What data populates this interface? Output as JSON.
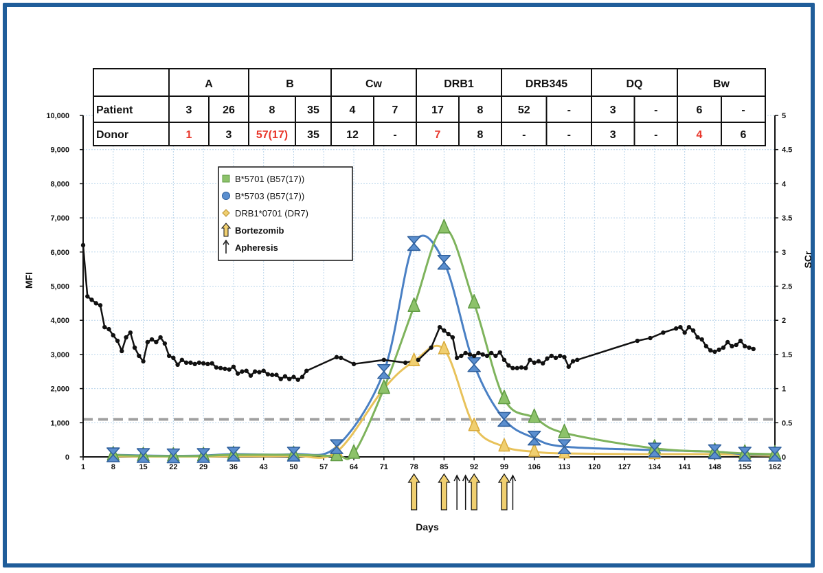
{
  "colors": {
    "frame": "#1f5d9a",
    "grid": "#b8d4ea",
    "green": "#7eb35c",
    "green_marker": "#8dc26a",
    "blue": "#4a80c4",
    "blue_marker": "#5b8fcf",
    "yellow": "#e8c25a",
    "yellow_marker": "#f0cf70",
    "scr_line": "#111111",
    "threshold": "#a0a0a0",
    "mismatch_text": "#e8362a"
  },
  "hla_table": {
    "headers": [
      "",
      "A",
      "B",
      "Cw",
      "DRB1",
      "DRB345",
      "DQ",
      "Bw"
    ],
    "rows": [
      {
        "label": "Patient",
        "cells": [
          {
            "text": "3",
            "mismatch": false
          },
          {
            "text": "26",
            "mismatch": false
          },
          {
            "text": "8",
            "mismatch": false
          },
          {
            "text": "35",
            "mismatch": false
          },
          {
            "text": "4",
            "mismatch": false
          },
          {
            "text": "7",
            "mismatch": false
          },
          {
            "text": "17",
            "mismatch": false
          },
          {
            "text": "8",
            "mismatch": false
          },
          {
            "text": "52",
            "mismatch": false
          },
          {
            "text": "-",
            "mismatch": false
          },
          {
            "text": "3",
            "mismatch": false
          },
          {
            "text": "-",
            "mismatch": false
          },
          {
            "text": "6",
            "mismatch": false
          },
          {
            "text": "-",
            "mismatch": false
          }
        ]
      },
      {
        "label": "Donor",
        "cells": [
          {
            "text": "1",
            "mismatch": true
          },
          {
            "text": "3",
            "mismatch": false
          },
          {
            "text": "57(17)",
            "mismatch": true
          },
          {
            "text": "35",
            "mismatch": false
          },
          {
            "text": "12",
            "mismatch": false
          },
          {
            "text": "-",
            "mismatch": false
          },
          {
            "text": "7",
            "mismatch": true
          },
          {
            "text": "8",
            "mismatch": false
          },
          {
            "text": "-",
            "mismatch": false
          },
          {
            "text": "-",
            "mismatch": false
          },
          {
            "text": "3",
            "mismatch": false
          },
          {
            "text": "-",
            "mismatch": false
          },
          {
            "text": "4",
            "mismatch": true
          },
          {
            "text": "6",
            "mismatch": false
          }
        ]
      }
    ]
  },
  "legend": {
    "items": [
      {
        "label": "B*5701 (B57(17))",
        "marker": "square",
        "color_key": "green_marker"
      },
      {
        "label": "B*5703 (B57(17))",
        "marker": "circle",
        "color_key": "blue_marker"
      },
      {
        "label": "DRB1*0701 (DR7)",
        "marker": "diamond",
        "color_key": "yellow_marker"
      },
      {
        "label": "Bortezomib",
        "marker": "thick-arrow",
        "color_key": "yellow_marker"
      },
      {
        "label": "Apheresis",
        "marker": "thin-arrow",
        "color_key": "scr_line"
      }
    ]
  },
  "chart_data": {
    "type": "line",
    "xlabel": "Days",
    "ylabel": "MFI",
    "y2label": "SCr",
    "xlim": [
      1,
      162
    ],
    "ylim": [
      0,
      10000
    ],
    "y2lim": [
      0,
      5
    ],
    "x_ticks": [
      1,
      8,
      15,
      22,
      29,
      36,
      43,
      50,
      57,
      64,
      71,
      78,
      85,
      92,
      99,
      106,
      113,
      120,
      127,
      134,
      141,
      148,
      155,
      162
    ],
    "y_ticks": [
      {
        "value": 0,
        "label": "0"
      },
      {
        "value": 1000,
        "label": "1,000"
      },
      {
        "value": 2000,
        "label": "2,000"
      },
      {
        "value": 3000,
        "label": "3,000"
      },
      {
        "value": 4000,
        "label": "4,000"
      },
      {
        "value": 5000,
        "label": "5,000"
      },
      {
        "value": 6000,
        "label": "6,000"
      },
      {
        "value": 7000,
        "label": "7,000"
      },
      {
        "value": 8000,
        "label": "8,000"
      },
      {
        "value": 9000,
        "label": "9,000"
      },
      {
        "value": 10000,
        "label": "10,000"
      }
    ],
    "y2_ticks": [
      {
        "value": 0,
        "label": "0"
      },
      {
        "value": 0.5,
        "label": "0.5"
      },
      {
        "value": 1,
        "label": "1"
      },
      {
        "value": 1.5,
        "label": "1.5"
      },
      {
        "value": 2,
        "label": "2"
      },
      {
        "value": 2.5,
        "label": "2.5"
      },
      {
        "value": 3,
        "label": "3"
      },
      {
        "value": 3.5,
        "label": "3.5"
      },
      {
        "value": 4,
        "label": "4"
      },
      {
        "value": 4.5,
        "label": "4.5"
      },
      {
        "value": 5,
        "label": "5"
      }
    ],
    "threshold_mfi": 1100,
    "series": [
      {
        "name": "B*5701 (B57(17))",
        "color_key": "green",
        "marker_color_key": "green_marker",
        "points": [
          [
            8,
            50
          ],
          [
            15,
            30
          ],
          [
            22,
            20
          ],
          [
            29,
            30
          ],
          [
            36,
            60
          ],
          [
            50,
            60
          ],
          [
            60,
            30
          ],
          [
            64,
            100
          ],
          [
            71,
            2000
          ],
          [
            78,
            4400
          ],
          [
            85,
            6700
          ],
          [
            92,
            4500
          ],
          [
            99,
            1700
          ],
          [
            106,
            1150
          ],
          [
            113,
            700
          ],
          [
            134,
            250
          ],
          [
            148,
            150
          ],
          [
            155,
            100
          ],
          [
            162,
            80
          ]
        ]
      },
      {
        "name": "B*5703 (B57(17))",
        "color_key": "blue",
        "marker_color_key": "blue_marker",
        "points": [
          [
            8,
            60
          ],
          [
            15,
            40
          ],
          [
            22,
            30
          ],
          [
            29,
            40
          ],
          [
            36,
            80
          ],
          [
            50,
            80
          ],
          [
            60,
            300
          ],
          [
            71,
            2500
          ],
          [
            78,
            6250
          ],
          [
            85,
            5700
          ],
          [
            92,
            2700
          ],
          [
            99,
            1100
          ],
          [
            106,
            550
          ],
          [
            113,
            300
          ],
          [
            134,
            200
          ],
          [
            148,
            150
          ],
          [
            155,
            80
          ],
          [
            162,
            80
          ]
        ]
      },
      {
        "name": "DRB1*0701 (DR7)",
        "color_key": "yellow",
        "marker_color_key": "yellow_marker",
        "points": [
          [
            8,
            20
          ],
          [
            15,
            10
          ],
          [
            22,
            10
          ],
          [
            29,
            10
          ],
          [
            36,
            20
          ],
          [
            50,
            30
          ],
          [
            60,
            150
          ],
          [
            71,
            2000
          ],
          [
            78,
            2800
          ],
          [
            85,
            3150
          ],
          [
            92,
            900
          ],
          [
            99,
            300
          ],
          [
            106,
            150
          ],
          [
            113,
            100
          ],
          [
            134,
            80
          ],
          [
            148,
            80
          ],
          [
            155,
            50
          ],
          [
            162,
            40
          ]
        ]
      },
      {
        "name": "SCr",
        "axis": "right",
        "color_key": "scr_line",
        "points": [
          [
            1,
            3.1
          ],
          [
            2,
            2.35
          ],
          [
            3,
            2.3
          ],
          [
            4,
            2.25
          ],
          [
            5,
            2.22
          ],
          [
            6,
            1.9
          ],
          [
            7,
            1.87
          ],
          [
            8,
            1.78
          ],
          [
            9,
            1.7
          ],
          [
            10,
            1.55
          ],
          [
            11,
            1.75
          ],
          [
            12,
            1.82
          ],
          [
            13,
            1.6
          ],
          [
            14,
            1.48
          ],
          [
            15,
            1.4
          ],
          [
            16,
            1.68
          ],
          [
            17,
            1.72
          ],
          [
            18,
            1.68
          ],
          [
            19,
            1.75
          ],
          [
            20,
            1.66
          ],
          [
            21,
            1.48
          ],
          [
            22,
            1.45
          ],
          [
            23,
            1.35
          ],
          [
            24,
            1.42
          ],
          [
            25,
            1.38
          ],
          [
            26,
            1.38
          ],
          [
            27,
            1.36
          ],
          [
            28,
            1.38
          ],
          [
            29,
            1.37
          ],
          [
            30,
            1.36
          ],
          [
            31,
            1.37
          ],
          [
            32,
            1.31
          ],
          [
            33,
            1.3
          ],
          [
            34,
            1.29
          ],
          [
            35,
            1.28
          ],
          [
            36,
            1.32
          ],
          [
            37,
            1.22
          ],
          [
            38,
            1.25
          ],
          [
            39,
            1.26
          ],
          [
            40,
            1.19
          ],
          [
            41,
            1.25
          ],
          [
            42,
            1.24
          ],
          [
            43,
            1.26
          ],
          [
            44,
            1.21
          ],
          [
            45,
            1.2
          ],
          [
            46,
            1.2
          ],
          [
            47,
            1.14
          ],
          [
            48,
            1.18
          ],
          [
            49,
            1.14
          ],
          [
            50,
            1.17
          ],
          [
            51,
            1.13
          ],
          [
            52,
            1.17
          ],
          [
            53,
            1.26
          ],
          [
            60,
            1.46
          ],
          [
            61,
            1.45
          ],
          [
            64,
            1.36
          ],
          [
            71,
            1.42
          ],
          [
            76,
            1.38
          ],
          [
            79,
            1.42
          ],
          [
            82,
            1.6
          ],
          [
            84,
            1.9
          ],
          [
            85,
            1.85
          ],
          [
            86,
            1.8
          ],
          [
            87,
            1.75
          ],
          [
            88,
            1.45
          ],
          [
            89,
            1.48
          ],
          [
            90,
            1.52
          ],
          [
            91,
            1.5
          ],
          [
            92,
            1.48
          ],
          [
            93,
            1.52
          ],
          [
            94,
            1.5
          ],
          [
            95,
            1.48
          ],
          [
            96,
            1.52
          ],
          [
            97,
            1.48
          ],
          [
            98,
            1.53
          ],
          [
            99,
            1.42
          ],
          [
            100,
            1.34
          ],
          [
            101,
            1.3
          ],
          [
            102,
            1.3
          ],
          [
            103,
            1.31
          ],
          [
            104,
            1.3
          ],
          [
            105,
            1.42
          ],
          [
            106,
            1.38
          ],
          [
            107,
            1.4
          ],
          [
            108,
            1.37
          ],
          [
            109,
            1.44
          ],
          [
            110,
            1.48
          ],
          [
            111,
            1.45
          ],
          [
            112,
            1.48
          ],
          [
            113,
            1.46
          ],
          [
            114,
            1.32
          ],
          [
            115,
            1.4
          ],
          [
            116,
            1.42
          ],
          [
            130,
            1.7
          ],
          [
            133,
            1.74
          ],
          [
            136,
            1.82
          ],
          [
            139,
            1.88
          ],
          [
            140,
            1.9
          ],
          [
            141,
            1.82
          ],
          [
            142,
            1.9
          ],
          [
            143,
            1.85
          ],
          [
            144,
            1.75
          ],
          [
            145,
            1.72
          ],
          [
            146,
            1.62
          ],
          [
            147,
            1.56
          ],
          [
            148,
            1.54
          ],
          [
            149,
            1.57
          ],
          [
            150,
            1.6
          ],
          [
            151,
            1.68
          ],
          [
            152,
            1.62
          ],
          [
            153,
            1.64
          ],
          [
            154,
            1.7
          ],
          [
            155,
            1.62
          ],
          [
            156,
            1.6
          ],
          [
            157,
            1.58
          ]
        ]
      }
    ],
    "bortezomib_days": [
      78,
      85,
      92,
      99
    ],
    "apheresis_days": [
      88,
      90,
      101
    ]
  }
}
